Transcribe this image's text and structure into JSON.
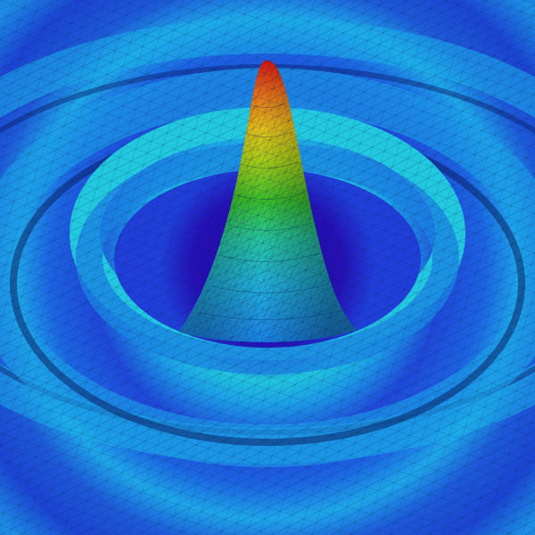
{
  "image": {
    "subject": "ripple-surface-render",
    "colormap": [
      "#2a0aa8",
      "#1f3fd8",
      "#1c86e6",
      "#22c6da",
      "#27c8a0",
      "#39c22a",
      "#a8d018",
      "#e6c21a",
      "#e8741a",
      "#d81a10"
    ],
    "mesh_line_color": "#06164a",
    "background_color": "#1a4fd0"
  }
}
